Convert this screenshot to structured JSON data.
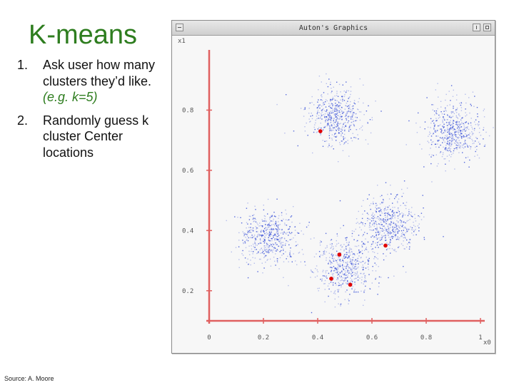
{
  "slide": {
    "title": "K-means",
    "steps": [
      {
        "num": "1.",
        "text": "Ask user how many clusters they’d like.",
        "example": "(e.g. k=5)"
      },
      {
        "num": "2.",
        "text": "Randomly guess k cluster Center locations",
        "example": ""
      }
    ],
    "source": "Source: A. Moore"
  },
  "window": {
    "title": "Auton's Graphics"
  },
  "chart_data": {
    "type": "scatter",
    "xlabel": "x0",
    "ylabel": "x1",
    "xlim": [
      0,
      1
    ],
    "ylim": [
      0.1,
      1
    ],
    "x_ticks": [
      "0",
      "0.2",
      "0.4",
      "0.6",
      "0.8",
      "1"
    ],
    "y_ticks": [
      "0.2",
      "0.4",
      "0.6",
      "0.8"
    ],
    "axis_color": "#e06060",
    "points_color": "#3b52d8",
    "centers_color": "#e00000",
    "clusters": [
      {
        "cx": 0.46,
        "cy": 0.78
      },
      {
        "cx": 0.9,
        "cy": 0.73
      },
      {
        "cx": 0.22,
        "cy": 0.38
      },
      {
        "cx": 0.66,
        "cy": 0.42
      },
      {
        "cx": 0.5,
        "cy": 0.28
      }
    ],
    "centers": [
      {
        "x": 0.41,
        "y": 0.73
      },
      {
        "x": 0.48,
        "y": 0.32
      },
      {
        "x": 0.45,
        "y": 0.24
      },
      {
        "x": 0.52,
        "y": 0.22
      },
      {
        "x": 0.65,
        "y": 0.35
      }
    ]
  }
}
